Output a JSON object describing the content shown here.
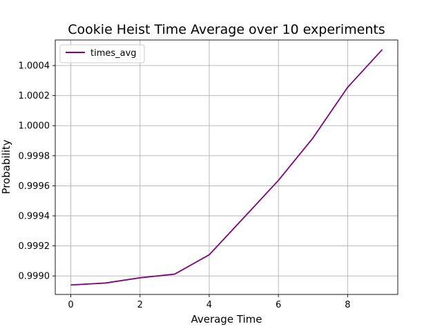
{
  "chart_data": {
    "type": "line",
    "title": "Cookie Heist Time Average over 10 experiments",
    "xlabel": "Average Time",
    "ylabel": "Probability",
    "x": [
      0,
      1,
      2,
      3,
      4,
      5,
      6,
      7,
      8,
      9
    ],
    "series": [
      {
        "name": "times_avg",
        "color": "#800080",
        "values": [
          0.99894,
          0.998953,
          0.998988,
          0.999012,
          0.999141,
          0.999388,
          0.999636,
          0.999919,
          1.000255,
          1.000506
        ]
      }
    ],
    "xlim": [
      -0.45,
      9.45
    ],
    "ylim": [
      0.998877,
      1.00057
    ],
    "x_ticks": [
      0,
      2,
      4,
      6,
      8
    ],
    "x_tick_labels": [
      "0",
      "2",
      "4",
      "6",
      "8"
    ],
    "y_ticks": [
      0.999,
      0.9992,
      0.9994,
      0.9996,
      0.9998,
      1.0,
      1.0002,
      1.0004
    ],
    "y_tick_labels": [
      "0.9990",
      "0.9992",
      "0.9994",
      "0.9996",
      "0.9998",
      "1.0000",
      "1.0002",
      "1.0004"
    ],
    "grid": true,
    "legend_position": "top-left"
  }
}
